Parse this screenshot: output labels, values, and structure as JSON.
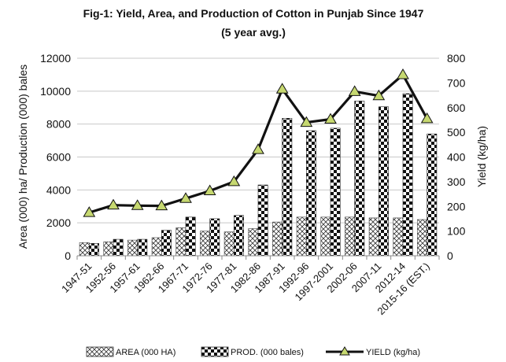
{
  "chart_data": {
    "type": "bar+line",
    "title": "Fig-1: Yield, Area, and Production of Cotton in Punjab Since 1947",
    "subtitle": "(5 year avg.)",
    "categories": [
      "1947-51",
      "1952-56",
      "1957-61",
      "1962-66",
      "1967-71",
      "1972-76",
      "1977-81",
      "1982-86",
      "1987-91",
      "1992-96",
      "1997-2001",
      "2002-06",
      "2007-11",
      "2012-14",
      "2015-16 (EST.)"
    ],
    "series": [
      {
        "name": "AREA (000 HA)",
        "type": "bar",
        "axis": "left",
        "values": [
          800,
          850,
          950,
          1100,
          1700,
          1500,
          1450,
          1650,
          2050,
          2350,
          2350,
          2350,
          2300,
          2300,
          2200
        ]
      },
      {
        "name": "PROD. (000 bales)",
        "type": "bar",
        "axis": "left",
        "values": [
          750,
          1000,
          1000,
          1550,
          2350,
          2250,
          2450,
          4300,
          8350,
          7600,
          7750,
          9400,
          9050,
          9850,
          7400
        ]
      },
      {
        "name": "YIELD (kg/ha)",
        "type": "line",
        "axis": "right",
        "values": [
          175,
          205,
          203,
          202,
          232,
          263,
          300,
          430,
          675,
          540,
          553,
          665,
          648,
          733,
          555
        ]
      }
    ],
    "ylabel": "Area (000) ha/ Production (000) bales",
    "y2label": "Yield (kg/ha)",
    "ylim": [
      0,
      12000
    ],
    "y2lim": [
      0,
      800
    ],
    "yticks": [
      "0",
      "2000",
      "4000",
      "6000",
      "8000",
      "10000",
      "12000"
    ],
    "y2ticks": [
      "0",
      "100",
      "200",
      "300",
      "400",
      "500",
      "600",
      "700",
      "800"
    ],
    "grid": true,
    "legend": "bottom"
  }
}
